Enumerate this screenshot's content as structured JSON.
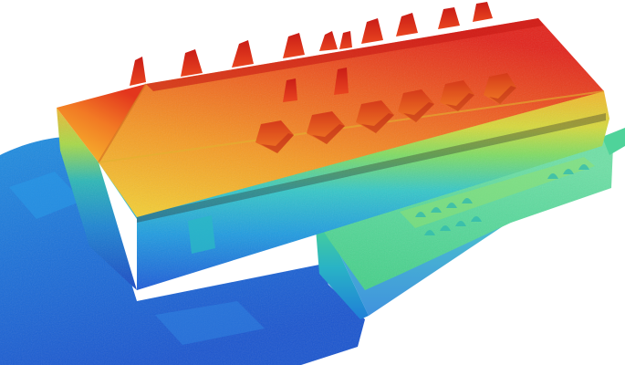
{
  "scene": {
    "subject": "building-mesh-height-colormap",
    "colormap": [
      "#1d4fd8",
      "#1f8fe6",
      "#2fc2d9",
      "#48d79a",
      "#9ee04a",
      "#f2d23a",
      "#f58a22",
      "#e4261c"
    ],
    "background": "#ffffff"
  }
}
